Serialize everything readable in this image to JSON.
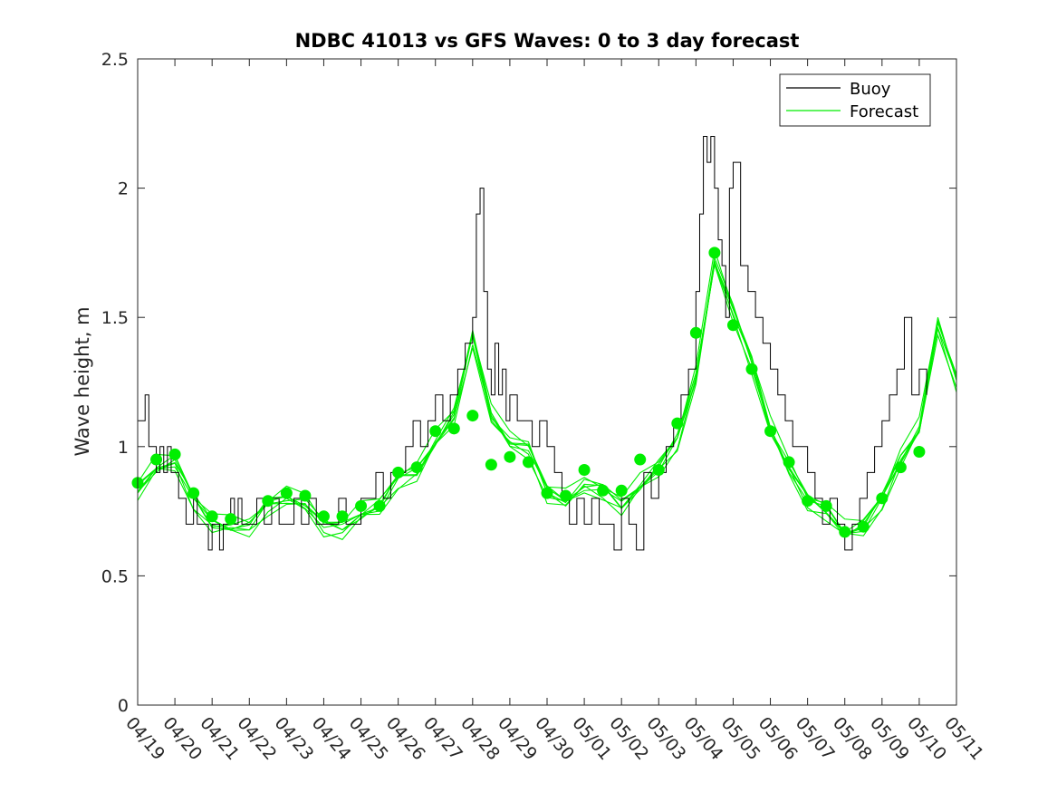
{
  "chart_data": {
    "type": "line",
    "title": "NDBC 41013 vs GFS Waves: 0 to 3 day forecast",
    "xlabel": "",
    "ylabel": "Wave height, m",
    "xlim": [
      0,
      22
    ],
    "ylim": [
      0,
      2.5
    ],
    "x_tick_labels": [
      "04/19",
      "04/20",
      "04/21",
      "04/22",
      "04/23",
      "04/24",
      "04/25",
      "04/26",
      "04/27",
      "04/28",
      "04/29",
      "04/30",
      "05/01",
      "05/02",
      "05/03",
      "05/04",
      "05/05",
      "05/06",
      "05/07",
      "05/08",
      "05/09",
      "05/10",
      "05/11"
    ],
    "y_ticks": [
      0,
      0.5,
      1,
      1.5,
      2,
      2.5
    ],
    "y_tick_labels": [
      "0",
      "0.5",
      "1",
      "1.5",
      "2",
      "2.5"
    ],
    "grid": false,
    "legend_position": "top-right",
    "colors": {
      "buoy": "#000000",
      "forecast": "#00ee00"
    },
    "series": [
      {
        "name": "Buoy",
        "x": [
          0,
          0.1,
          0.2,
          0.3,
          0.4,
          0.5,
          0.6,
          0.7,
          0.8,
          0.9,
          1.0,
          1.1,
          1.2,
          1.3,
          1.4,
          1.5,
          1.6,
          1.7,
          1.8,
          1.9,
          2.0,
          2.1,
          2.2,
          2.3,
          2.4,
          2.5,
          2.6,
          2.7,
          2.8,
          2.9,
          3.0,
          3.2,
          3.4,
          3.6,
          3.8,
          4.0,
          4.2,
          4.4,
          4.6,
          4.8,
          5.0,
          5.2,
          5.4,
          5.6,
          5.8,
          6.0,
          6.2,
          6.4,
          6.6,
          6.8,
          7.0,
          7.2,
          7.4,
          7.6,
          7.8,
          8.0,
          8.2,
          8.4,
          8.6,
          8.8,
          9.0,
          9.1,
          9.2,
          9.3,
          9.4,
          9.5,
          9.6,
          9.7,
          9.8,
          9.9,
          10.0,
          10.2,
          10.4,
          10.6,
          10.8,
          11.0,
          11.2,
          11.4,
          11.6,
          11.8,
          12.0,
          12.2,
          12.4,
          12.6,
          12.8,
          13.0,
          13.2,
          13.4,
          13.6,
          13.8,
          14.0,
          14.2,
          14.4,
          14.6,
          14.8,
          15.0,
          15.1,
          15.2,
          15.3,
          15.4,
          15.5,
          15.6,
          15.7,
          15.8,
          15.9,
          16.0,
          16.2,
          16.4,
          16.6,
          16.8,
          17.0,
          17.2,
          17.4,
          17.6,
          17.8,
          18.0,
          18.2,
          18.4,
          18.6,
          18.8,
          19.0,
          19.2,
          19.4,
          19.6,
          19.8,
          20.0,
          20.2,
          20.4,
          20.6,
          20.8,
          21.0,
          21.2
        ],
        "values": [
          1.1,
          1.1,
          1.2,
          1.0,
          1.0,
          0.9,
          1.0,
          0.9,
          1.0,
          0.9,
          0.9,
          0.8,
          0.8,
          0.7,
          0.7,
          0.8,
          0.7,
          0.7,
          0.7,
          0.6,
          0.7,
          0.7,
          0.6,
          0.7,
          0.7,
          0.8,
          0.7,
          0.8,
          0.7,
          0.7,
          0.7,
          0.8,
          0.7,
          0.8,
          0.7,
          0.7,
          0.8,
          0.7,
          0.8,
          0.7,
          0.7,
          0.7,
          0.8,
          0.7,
          0.7,
          0.8,
          0.8,
          0.9,
          0.8,
          0.9,
          0.9,
          1.0,
          1.1,
          1.0,
          1.1,
          1.2,
          1.1,
          1.2,
          1.3,
          1.4,
          1.5,
          1.9,
          2.0,
          1.6,
          1.3,
          1.2,
          1.4,
          1.2,
          1.3,
          1.1,
          1.2,
          1.1,
          1.1,
          1.0,
          1.1,
          1.0,
          0.9,
          0.8,
          0.7,
          0.8,
          0.7,
          0.8,
          0.7,
          0.7,
          0.6,
          0.8,
          0.7,
          0.6,
          0.9,
          0.8,
          0.9,
          1.0,
          1.1,
          1.2,
          1.3,
          1.6,
          1.9,
          2.2,
          2.1,
          2.2,
          2.0,
          1.8,
          1.7,
          1.5,
          2.0,
          2.1,
          1.7,
          1.6,
          1.5,
          1.4,
          1.3,
          1.2,
          1.1,
          1.0,
          1.0,
          0.9,
          0.8,
          0.7,
          0.8,
          0.7,
          0.6,
          0.7,
          0.8,
          0.9,
          1.0,
          1.1,
          1.2,
          1.3,
          1.5,
          1.2,
          1.3,
          1.2
        ]
      },
      {
        "name": "Forecast",
        "x": [
          0,
          0.5,
          1.0,
          1.5,
          2.0,
          2.5,
          3.0,
          3.5,
          4.0,
          4.5,
          5.0,
          5.5,
          6.0,
          6.5,
          7.0,
          7.5,
          8.0,
          8.5,
          9.0,
          9.5,
          10.0,
          10.5,
          11.0,
          11.5,
          12.0,
          12.5,
          13.0,
          13.5,
          14.0,
          14.5,
          15.0,
          15.5,
          16.0,
          16.5,
          17.0,
          17.5,
          18.0,
          18.5,
          19.0,
          19.5,
          20.0,
          20.5,
          21.0,
          21.5,
          22.0
        ],
        "values": [
          0.86,
          0.95,
          0.97,
          0.82,
          0.73,
          0.72,
          0.72,
          0.8,
          0.83,
          0.81,
          0.72,
          0.71,
          0.77,
          0.8,
          0.9,
          0.93,
          1.05,
          1.15,
          1.45,
          1.15,
          1.05,
          1.02,
          0.85,
          0.82,
          0.88,
          0.86,
          0.8,
          0.88,
          0.95,
          1.05,
          1.3,
          1.75,
          1.55,
          1.35,
          1.1,
          0.95,
          0.82,
          0.78,
          0.7,
          0.72,
          0.82,
          0.98,
          1.1,
          1.5,
          1.28
        ]
      }
    ],
    "markers": {
      "x": [
        0,
        0.5,
        1.0,
        1.5,
        2.0,
        2.5,
        3.5,
        4.0,
        4.5,
        5.0,
        5.5,
        6.0,
        6.5,
        7.0,
        7.5,
        8.0,
        8.5,
        9.0,
        9.5,
        10.0,
        10.5,
        11.0,
        11.5,
        12.0,
        12.5,
        13.0,
        13.5,
        14.0,
        14.5,
        15.0,
        15.5,
        16.0,
        16.5,
        17.0,
        17.5,
        18.0,
        18.5,
        19.0,
        19.5,
        20.0,
        20.5,
        21.0
      ],
      "values": [
        0.86,
        0.95,
        0.97,
        0.82,
        0.73,
        0.72,
        0.79,
        0.82,
        0.81,
        0.73,
        0.73,
        0.77,
        0.77,
        0.9,
        0.92,
        1.06,
        1.07,
        1.12,
        0.93,
        0.96,
        0.94,
        0.82,
        0.81,
        0.91,
        0.83,
        0.83,
        0.95,
        0.91,
        1.09,
        1.44,
        1.75,
        1.47,
        1.3,
        1.06,
        0.94,
        0.79,
        0.77,
        0.67,
        0.69,
        0.8,
        0.92,
        0.98
      ]
    }
  }
}
